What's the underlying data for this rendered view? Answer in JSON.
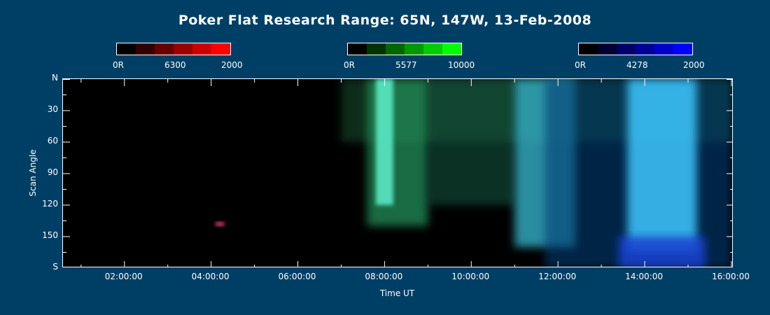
{
  "title": "Poker Flat Research Range: 65N, 147W, 13-Feb-2008",
  "colorbars": [
    {
      "labels": [
        "0R",
        "6300",
        "2000"
      ],
      "colors": [
        "#000000",
        "#330000",
        "#660000",
        "#990000",
        "#cc0000",
        "#ff0000"
      ]
    },
    {
      "labels": [
        "0R",
        "5577",
        "10000"
      ],
      "colors": [
        "#000000",
        "#003300",
        "#006600",
        "#009900",
        "#00cc00",
        "#00ff00"
      ]
    },
    {
      "labels": [
        "0R",
        "4278",
        "2000"
      ],
      "colors": [
        "#000000",
        "#000033",
        "#000066",
        "#000099",
        "#0000cc",
        "#0000ff"
      ]
    }
  ],
  "chart_data": {
    "type": "heatmap",
    "title": "Poker Flat Research Range: 65N, 147W, 13-Feb-2008",
    "xlabel": "Time UT",
    "ylabel": "Scan Angle",
    "x_range": [
      "00:35",
      "16:03"
    ],
    "y_range": [
      "N",
      "S"
    ],
    "x_ticks": [
      "02:00:00",
      "04:00:00",
      "06:00:00",
      "08:00:00",
      "10:00:00",
      "12:00:00",
      "14:00:00",
      "16:00:00"
    ],
    "x_tick_hours": [
      2,
      4,
      6,
      8,
      10,
      12,
      14,
      16
    ],
    "y_ticks": [
      "N",
      "30",
      "60",
      "90",
      "120",
      "150",
      "S"
    ],
    "y_tick_values": [
      0,
      30,
      60,
      90,
      120,
      150,
      180
    ],
    "channels": [
      "6300 (red)",
      "5577 (green)",
      "4278 (blue)"
    ],
    "features": [
      {
        "name": "faint green glow",
        "start_hour": 7.0,
        "end_hour": 16.0,
        "angle_from": 0,
        "angle_to": 60,
        "color": "#0d3a1e",
        "opacity": 0.8
      },
      {
        "name": "green arc",
        "start_hour": 7.6,
        "end_hour": 9.0,
        "angle_from": 0,
        "angle_to": 140,
        "color": "#1f8f5a",
        "opacity": 0.75
      },
      {
        "name": "bright green/cyan arc",
        "start_hour": 7.8,
        "end_hour": 8.2,
        "angle_from": 0,
        "angle_to": 120,
        "color": "#59e8c4",
        "opacity": 0.9
      },
      {
        "name": "blue-green diffuse",
        "start_hour": 9.0,
        "end_hour": 11.0,
        "angle_from": 0,
        "angle_to": 120,
        "color": "#0f5a46",
        "opacity": 0.55
      },
      {
        "name": "cyan band",
        "start_hour": 11.0,
        "end_hour": 12.4,
        "angle_from": 0,
        "angle_to": 160,
        "color": "#36b0c8",
        "opacity": 0.8
      },
      {
        "name": "blue diffuse",
        "start_hour": 11.7,
        "end_hour": 16.0,
        "angle_from": 0,
        "angle_to": 180,
        "color": "#0a3c74",
        "opacity": 0.6
      },
      {
        "name": "bright cyan/blue aurora",
        "start_hour": 13.6,
        "end_hour": 15.2,
        "angle_from": 0,
        "angle_to": 165,
        "color": "#3cc7ff",
        "opacity": 0.85
      },
      {
        "name": "deep blue base",
        "start_hour": 13.4,
        "end_hour": 15.4,
        "angle_from": 150,
        "angle_to": 180,
        "color": "#1a3fd0",
        "opacity": 0.85
      },
      {
        "name": "red blip",
        "start_hour": 4.1,
        "end_hour": 4.3,
        "angle_from": 136,
        "angle_to": 140,
        "color": "#ff4080",
        "opacity": 0.9
      }
    ]
  }
}
